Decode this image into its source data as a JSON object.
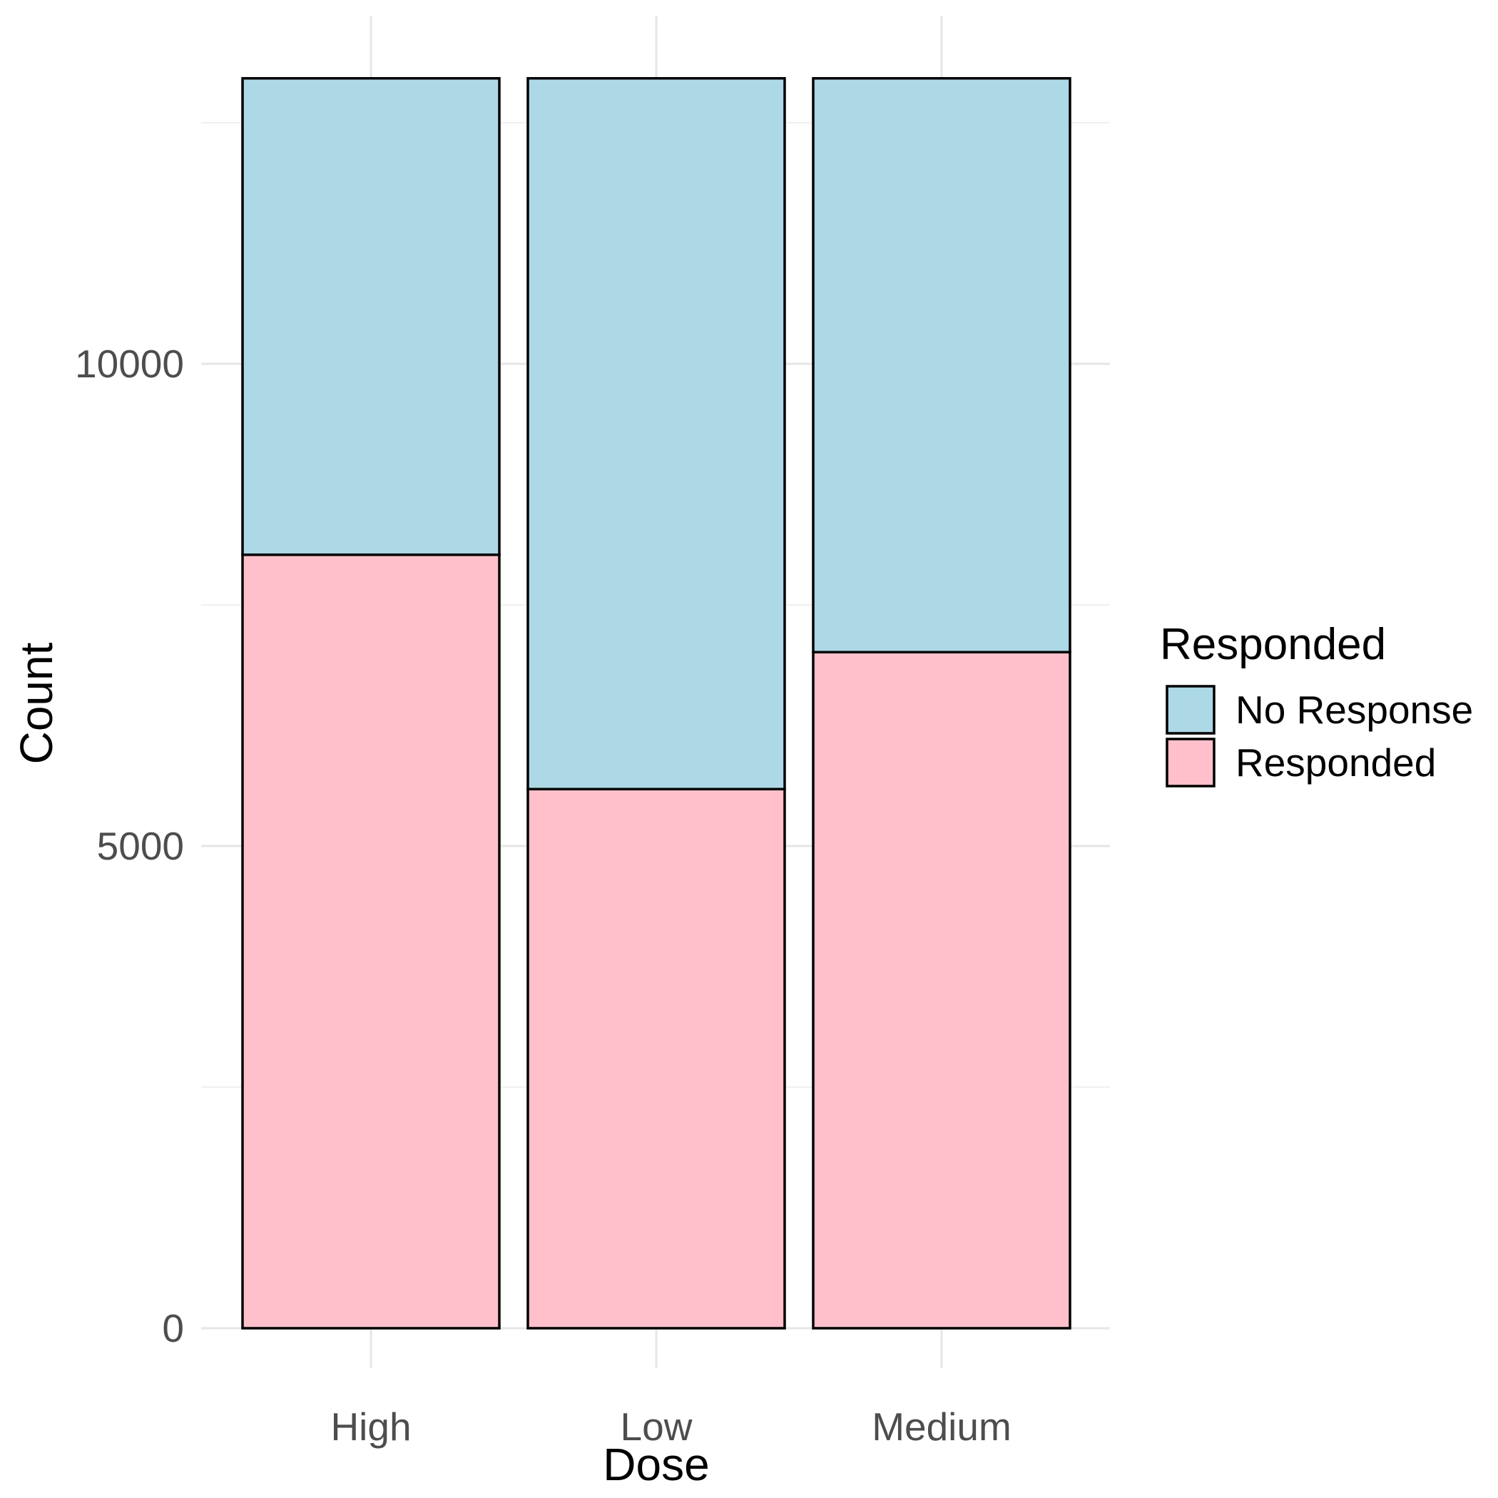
{
  "chart_data": {
    "type": "bar",
    "stacked": true,
    "title": "",
    "xlabel": "Dose",
    "ylabel": "Count",
    "categories": [
      "High",
      "Low",
      "Medium"
    ],
    "series": [
      {
        "name": "Responded",
        "color": "#ffc0cb",
        "values": [
          8020,
          5590,
          7010
        ]
      },
      {
        "name": "No Response",
        "color": "#add8e6",
        "values": [
          4940,
          7370,
          5950
        ]
      }
    ],
    "ylim": [
      0,
      13500
    ],
    "yticks": [
      0,
      5000,
      10000
    ],
    "grid": true,
    "legend": {
      "title": "Responded",
      "position": "right",
      "entries": [
        "No Response",
        "Responded"
      ]
    }
  }
}
